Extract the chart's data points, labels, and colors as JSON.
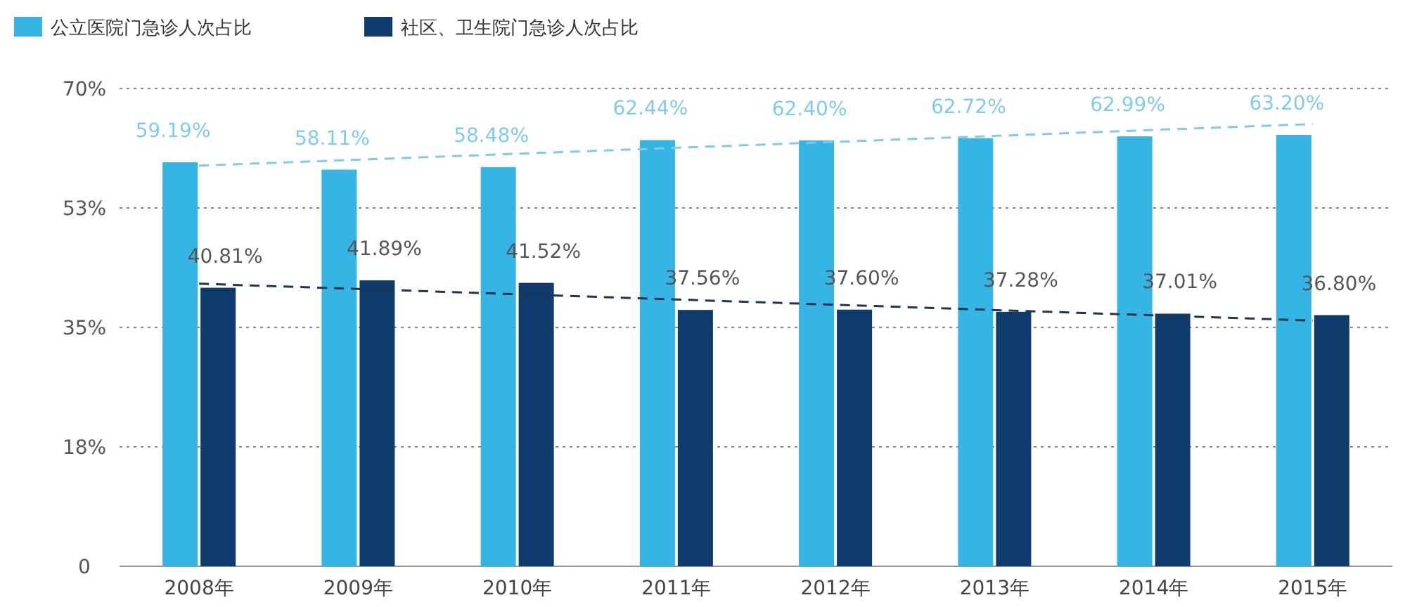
{
  "chart_data": {
    "type": "bar",
    "categories": [
      "2008年",
      "2009年",
      "2010年",
      "2011年",
      "2012年",
      "2013年",
      "2014年",
      "2015年"
    ],
    "ylim": [
      0,
      70
    ],
    "yticks": [
      0,
      {
        "value": 17.5,
        "label": "18%"
      },
      {
        "value": 35,
        "label": "35%"
      },
      {
        "value": 52.5,
        "label": "53%"
      },
      {
        "value": 70,
        "label": "70%"
      }
    ],
    "grid": "y",
    "legend": "top",
    "series": [
      {
        "name": "公立医院门急诊人次占比",
        "color": "#36b4e3",
        "values": [
          59.19,
          58.11,
          58.48,
          62.44,
          62.4,
          62.72,
          62.99,
          63.2
        ],
        "value_labels": [
          "59.19%",
          "58.11%",
          "58.48%",
          "62.44%",
          "62.40%",
          "62.72%",
          "62.99%",
          "63.20%"
        ]
      },
      {
        "name": "社区、卫生院门急诊人次占比",
        "color": "#0e3b6c",
        "values": [
          40.81,
          41.89,
          41.52,
          37.56,
          37.6,
          37.28,
          37.01,
          36.8
        ],
        "value_labels": [
          "40.81%",
          "41.89%",
          "41.52%",
          "37.56%",
          "37.60%",
          "37.28%",
          "37.01%",
          "36.80%"
        ]
      },
      {
        "type": "line",
        "color": "#7fcbe8",
        "line_style": "dashed",
        "x": [
          "2008年",
          "2015年"
        ],
        "values": [
          58.7,
          64.8
        ]
      },
      {
        "type": "line",
        "color": "#1f3550",
        "line_style": "dashed",
        "x": [
          "2008年",
          "2015年"
        ],
        "values": [
          41.4,
          36.0
        ]
      }
    ]
  }
}
